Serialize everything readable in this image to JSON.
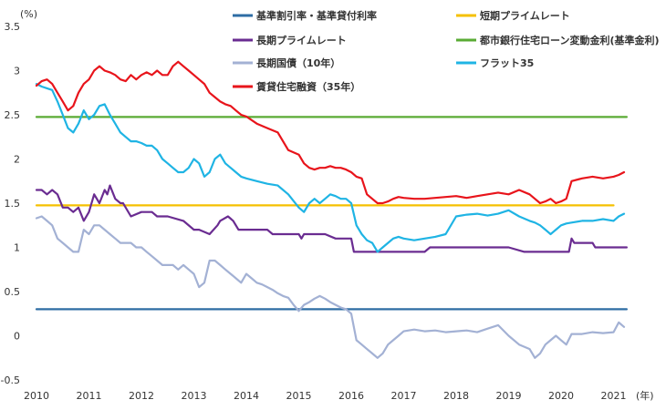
{
  "chart_data": {
    "type": "line",
    "title": "",
    "ylabel": "(%)",
    "xlabel": "(年)",
    "ylim": [
      -0.5,
      3.5
    ],
    "xlim": [
      2010,
      2021.5
    ],
    "yticks": [
      "-0.5",
      "0",
      "0.5",
      "1",
      "1.5",
      "2",
      "2.5",
      "3",
      "3.5"
    ],
    "ytick_values": [
      -0.5,
      0,
      0.5,
      1,
      1.5,
      2,
      2.5,
      3,
      3.5
    ],
    "xticks": [
      "2010",
      "2011",
      "2012",
      "2013",
      "2014",
      "2015",
      "2016",
      "2017",
      "2018",
      "2019",
      "2020",
      "2021"
    ],
    "xtick_values": [
      2010,
      2011,
      2012,
      2013,
      2014,
      2015,
      2016,
      2017,
      2018,
      2019,
      2020,
      2021
    ],
    "legend_position": "top",
    "series": [
      {
        "name": "基準割引率・基準貸付利率",
        "color": "#2e6da4",
        "x": [
          2010.0,
          2021.25
        ],
        "values": [
          0.3,
          0.3
        ]
      },
      {
        "name": "短期プライムレート",
        "color": "#f5c000",
        "x": [
          2010.0,
          2021.0
        ],
        "values": [
          1.475,
          1.475
        ]
      },
      {
        "name": "長期プライムレート",
        "color": "#6a2c91",
        "x": [
          2010.0,
          2010.1,
          2010.2,
          2010.3,
          2010.4,
          2010.5,
          2010.6,
          2010.7,
          2010.8,
          2010.9,
          2011.0,
          2011.1,
          2011.2,
          2011.3,
          2011.35,
          2011.4,
          2011.5,
          2011.6,
          2011.65,
          2011.8,
          2012.0,
          2012.2,
          2012.3,
          2012.5,
          2012.8,
          2013.0,
          2013.1,
          2013.3,
          2013.45,
          2013.5,
          2013.65,
          2013.75,
          2013.85,
          2014.1,
          2014.4,
          2014.5,
          2015.0,
          2015.05,
          2015.1,
          2015.5,
          2015.7,
          2016.0,
          2016.05,
          2016.3,
          2016.5,
          2017.0,
          2017.4,
          2017.5,
          2018.0,
          2019.0,
          2019.3,
          2019.5,
          2019.9,
          2020.15,
          2020.2,
          2020.25,
          2020.6,
          2020.65,
          2021.25
        ],
        "values": [
          1.65,
          1.65,
          1.6,
          1.65,
          1.6,
          1.45,
          1.45,
          1.4,
          1.45,
          1.3,
          1.4,
          1.6,
          1.5,
          1.65,
          1.6,
          1.7,
          1.55,
          1.5,
          1.5,
          1.35,
          1.4,
          1.4,
          1.35,
          1.35,
          1.3,
          1.2,
          1.2,
          1.15,
          1.25,
          1.3,
          1.35,
          1.3,
          1.2,
          1.2,
          1.2,
          1.15,
          1.15,
          1.1,
          1.15,
          1.15,
          1.1,
          1.1,
          0.95,
          0.95,
          0.95,
          0.95,
          0.95,
          1.0,
          1.0,
          1.0,
          0.95,
          0.95,
          0.95,
          0.95,
          1.1,
          1.05,
          1.05,
          1.0,
          1.0
        ]
      },
      {
        "name": "都市銀行住宅ローン変動金利(基準金利)",
        "color": "#5aab34",
        "x": [
          2010.0,
          2021.25
        ],
        "values": [
          2.475,
          2.475
        ]
      },
      {
        "name": "長期国債（10年）",
        "color": "#a3b1d4",
        "x": [
          2010.0,
          2010.1,
          2010.2,
          2010.3,
          2010.4,
          2010.5,
          2010.6,
          2010.7,
          2010.8,
          2010.9,
          2011.0,
          2011.1,
          2011.2,
          2011.3,
          2011.4,
          2011.5,
          2011.6,
          2011.7,
          2011.8,
          2011.9,
          2012.0,
          2012.1,
          2012.2,
          2012.3,
          2012.4,
          2012.5,
          2012.6,
          2012.7,
          2012.8,
          2012.9,
          2013.0,
          2013.1,
          2013.2,
          2013.3,
          2013.4,
          2013.5,
          2013.6,
          2013.7,
          2013.8,
          2013.9,
          2014.0,
          2014.1,
          2014.2,
          2014.3,
          2014.4,
          2014.5,
          2014.6,
          2014.7,
          2014.8,
          2014.9,
          2015.0,
          2015.1,
          2015.2,
          2015.3,
          2015.4,
          2015.5,
          2015.6,
          2015.7,
          2015.8,
          2015.9,
          2016.0,
          2016.1,
          2016.2,
          2016.3,
          2016.4,
          2016.5,
          2016.6,
          2016.7,
          2016.8,
          2016.9,
          2017.0,
          2017.2,
          2017.4,
          2017.6,
          2017.8,
          2018.0,
          2018.2,
          2018.4,
          2018.6,
          2018.8,
          2019.0,
          2019.2,
          2019.4,
          2019.5,
          2019.6,
          2019.7,
          2019.8,
          2019.9,
          2020.0,
          2020.1,
          2020.2,
          2020.4,
          2020.6,
          2020.8,
          2021.0,
          2021.1,
          2021.2
        ],
        "values": [
          1.33,
          1.35,
          1.3,
          1.25,
          1.1,
          1.05,
          1.0,
          0.95,
          0.95,
          1.2,
          1.15,
          1.25,
          1.25,
          1.2,
          1.15,
          1.1,
          1.05,
          1.05,
          1.05,
          1.0,
          1.0,
          0.95,
          0.9,
          0.85,
          0.8,
          0.8,
          0.8,
          0.75,
          0.8,
          0.75,
          0.7,
          0.55,
          0.6,
          0.85,
          0.85,
          0.8,
          0.75,
          0.7,
          0.65,
          0.6,
          0.7,
          0.65,
          0.6,
          0.58,
          0.55,
          0.52,
          0.48,
          0.45,
          0.43,
          0.35,
          0.28,
          0.35,
          0.38,
          0.42,
          0.45,
          0.42,
          0.38,
          0.35,
          0.32,
          0.3,
          0.25,
          -0.05,
          -0.1,
          -0.15,
          -0.2,
          -0.25,
          -0.2,
          -0.1,
          -0.05,
          0.0,
          0.05,
          0.07,
          0.05,
          0.06,
          0.04,
          0.05,
          0.06,
          0.04,
          0.08,
          0.12,
          0.0,
          -0.1,
          -0.15,
          -0.25,
          -0.2,
          -0.1,
          -0.05,
          0.0,
          -0.05,
          -0.1,
          0.02,
          0.02,
          0.04,
          0.03,
          0.04,
          0.15,
          0.1
        ]
      },
      {
        "name": "フラット35",
        "color": "#1fb4e4",
        "x": [
          2010.0,
          2010.1,
          2010.2,
          2010.3,
          2010.4,
          2010.5,
          2010.6,
          2010.7,
          2010.8,
          2010.9,
          2011.0,
          2011.1,
          2011.2,
          2011.3,
          2011.4,
          2011.5,
          2011.6,
          2011.7,
          2011.8,
          2011.9,
          2012.0,
          2012.1,
          2012.2,
          2012.3,
          2012.4,
          2012.5,
          2012.6,
          2012.7,
          2012.8,
          2012.9,
          2013.0,
          2013.1,
          2013.2,
          2013.3,
          2013.4,
          2013.5,
          2013.6,
          2013.7,
          2013.8,
          2013.9,
          2014.0,
          2014.2,
          2014.4,
          2014.6,
          2014.8,
          2015.0,
          2015.1,
          2015.2,
          2015.3,
          2015.4,
          2015.5,
          2015.6,
          2015.7,
          2015.8,
          2015.9,
          2016.0,
          2016.1,
          2016.2,
          2016.3,
          2016.4,
          2016.5,
          2016.6,
          2016.7,
          2016.8,
          2016.9,
          2017.0,
          2017.2,
          2017.4,
          2017.6,
          2017.8,
          2018.0,
          2018.2,
          2018.4,
          2018.6,
          2018.8,
          2019.0,
          2019.2,
          2019.4,
          2019.5,
          2019.6,
          2019.7,
          2019.8,
          2019.9,
          2020.0,
          2020.1,
          2020.2,
          2020.4,
          2020.6,
          2020.8,
          2021.0,
          2021.1,
          2021.2
        ],
        "values": [
          2.85,
          2.82,
          2.8,
          2.78,
          2.65,
          2.5,
          2.35,
          2.3,
          2.4,
          2.55,
          2.45,
          2.5,
          2.6,
          2.62,
          2.5,
          2.4,
          2.3,
          2.25,
          2.2,
          2.2,
          2.18,
          2.15,
          2.15,
          2.1,
          2.0,
          1.95,
          1.9,
          1.85,
          1.85,
          1.9,
          2.0,
          1.95,
          1.8,
          1.85,
          2.0,
          2.05,
          1.95,
          1.9,
          1.85,
          1.8,
          1.78,
          1.75,
          1.72,
          1.7,
          1.6,
          1.45,
          1.4,
          1.5,
          1.55,
          1.5,
          1.55,
          1.6,
          1.58,
          1.55,
          1.55,
          1.5,
          1.25,
          1.15,
          1.08,
          1.05,
          0.95,
          1.0,
          1.05,
          1.1,
          1.12,
          1.1,
          1.08,
          1.1,
          1.12,
          1.15,
          1.35,
          1.37,
          1.38,
          1.36,
          1.38,
          1.42,
          1.35,
          1.3,
          1.28,
          1.25,
          1.2,
          1.15,
          1.2,
          1.25,
          1.27,
          1.28,
          1.3,
          1.3,
          1.32,
          1.3,
          1.35,
          1.38
        ]
      },
      {
        "name": "賃貸住宅融資（35年）",
        "color": "#e8141b",
        "x": [
          2010.0,
          2010.1,
          2010.2,
          2010.3,
          2010.4,
          2010.5,
          2010.6,
          2010.7,
          2010.8,
          2010.9,
          2011.0,
          2011.1,
          2011.2,
          2011.3,
          2011.4,
          2011.5,
          2011.6,
          2011.7,
          2011.8,
          2011.9,
          2012.0,
          2012.1,
          2012.2,
          2012.3,
          2012.4,
          2012.5,
          2012.6,
          2012.7,
          2012.8,
          2012.9,
          2013.0,
          2013.1,
          2013.2,
          2013.3,
          2013.4,
          2013.5,
          2013.6,
          2013.7,
          2013.8,
          2013.9,
          2014.0,
          2014.2,
          2014.4,
          2014.6,
          2014.8,
          2015.0,
          2015.1,
          2015.2,
          2015.3,
          2015.4,
          2015.5,
          2015.6,
          2015.7,
          2015.8,
          2015.9,
          2016.0,
          2016.1,
          2016.2,
          2016.3,
          2016.4,
          2016.5,
          2016.6,
          2016.7,
          2016.8,
          2016.9,
          2017.0,
          2017.2,
          2017.4,
          2017.6,
          2017.8,
          2018.0,
          2018.2,
          2018.4,
          2018.6,
          2018.8,
          2019.0,
          2019.2,
          2019.4,
          2019.5,
          2019.6,
          2019.7,
          2019.8,
          2019.9,
          2020.0,
          2020.1,
          2020.2,
          2020.4,
          2020.6,
          2020.8,
          2021.0,
          2021.1,
          2021.2
        ],
        "values": [
          2.83,
          2.88,
          2.9,
          2.85,
          2.75,
          2.65,
          2.55,
          2.6,
          2.75,
          2.85,
          2.9,
          3.0,
          3.05,
          3.0,
          2.98,
          2.95,
          2.9,
          2.88,
          2.95,
          2.9,
          2.95,
          2.98,
          2.95,
          3.0,
          2.95,
          2.95,
          3.05,
          3.1,
          3.05,
          3.0,
          2.95,
          2.9,
          2.85,
          2.75,
          2.7,
          2.65,
          2.62,
          2.6,
          2.55,
          2.5,
          2.48,
          2.4,
          2.35,
          2.3,
          2.1,
          2.05,
          1.95,
          1.9,
          1.88,
          1.9,
          1.9,
          1.92,
          1.9,
          1.9,
          1.88,
          1.85,
          1.8,
          1.78,
          1.6,
          1.55,
          1.5,
          1.5,
          1.52,
          1.55,
          1.57,
          1.56,
          1.55,
          1.55,
          1.56,
          1.57,
          1.58,
          1.56,
          1.58,
          1.6,
          1.62,
          1.6,
          1.65,
          1.6,
          1.55,
          1.5,
          1.52,
          1.55,
          1.5,
          1.52,
          1.55,
          1.75,
          1.78,
          1.8,
          1.78,
          1.8,
          1.82,
          1.85
        ]
      }
    ]
  }
}
